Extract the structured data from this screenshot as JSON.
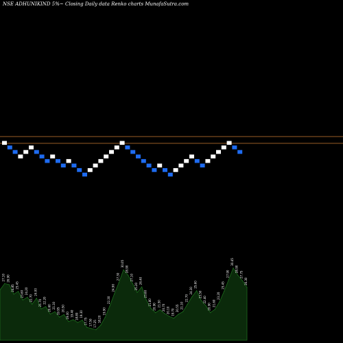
{
  "chart_data": {
    "type": "renko",
    "title": "NSE ADHUNIKIND 5%~  Closing Daily data  Renko  charts MunafaSutra.com",
    "colors": {
      "up_brick": "#ffffff",
      "down_brick": "#1e6bf0",
      "reference_line": "#b06a2a",
      "volume_fill": "#0b2a0b",
      "volume_line": "#1c6a1c",
      "background": "#000000"
    },
    "renko": {
      "brick_levels": [
        0,
        -1,
        -2,
        -3,
        -2,
        -1,
        -2,
        -3,
        -4,
        -3,
        -4,
        -5,
        -4,
        -5,
        -6,
        -7,
        -6,
        -5,
        -4,
        -3,
        -2,
        -1,
        0,
        -1,
        -2,
        -3,
        -4,
        -5,
        -6,
        -5,
        -6,
        -7,
        -6,
        -5,
        -4,
        -3,
        -4,
        -5,
        -4,
        -3,
        -2,
        -1,
        0,
        -1,
        -2
      ],
      "brick_directions": [
        "up",
        "down",
        "down",
        "up",
        "up",
        "up",
        "down",
        "down",
        "down",
        "up",
        "down",
        "down",
        "up",
        "down",
        "down",
        "down",
        "up",
        "up",
        "up",
        "up",
        "up",
        "up",
        "up",
        "down",
        "down",
        "down",
        "down",
        "down",
        "down",
        "up",
        "down",
        "down",
        "up",
        "up",
        "up",
        "up",
        "down",
        "down",
        "up",
        "up",
        "up",
        "up",
        "up",
        "down",
        "down"
      ],
      "reference_levels": [
        -0.6,
        0.9
      ]
    },
    "volume": {
      "values": [
        25.75,
        27.1,
        26.9,
        24.85,
        25.45,
        23.6,
        24.2,
        22.7,
        24.0,
        21.7,
        22.2,
        20.6,
        21.1,
        19.95,
        20.5,
        19.0,
        19.4,
        18.8,
        19.3,
        17.75,
        17.5,
        17.25,
        18.2,
        19.9,
        22.3,
        24.9,
        27.3,
        30.05,
        28.9,
        27.1,
        25.2,
        26.4,
        23.6,
        21.8,
        20.9,
        21.5,
        20.7,
        20.1,
        19.7,
        20.55,
        21.1,
        22.7,
        24.3,
        25.6,
        23.5,
        22.4,
        20.9,
        21.6,
        23.2,
        25.45,
        27.9,
        30.45,
        28.9,
        27.75,
        26.3
      ],
      "labels": [
        "25.75",
        "27.10",
        "26.90",
        "24.85",
        "25.45",
        "23.60",
        "24.20",
        "22.70",
        "24.00",
        "21.70",
        "22.20",
        "20.60",
        "21.10",
        "19.95",
        "20.50",
        "19.00",
        "19.40",
        "18.80",
        "19.30",
        "17.75",
        "17.50",
        "17.25",
        "18.20",
        "19.90",
        "22.30",
        "24.90",
        "27.30",
        "30.05",
        "28.90",
        "27.10",
        "25.20",
        "26.40",
        "23.60",
        "21.80",
        "20.90",
        "21.50",
        "20.70",
        "20.10",
        "19.70",
        "20.55",
        "21.10",
        "22.70",
        "24.30",
        "25.60",
        "23.50",
        "22.40",
        "20.90",
        "21.60",
        "23.20",
        "25.45",
        "27.90",
        "30.45",
        "28.90",
        "27.75",
        "26.30"
      ],
      "ylim": [
        15,
        32
      ]
    }
  }
}
